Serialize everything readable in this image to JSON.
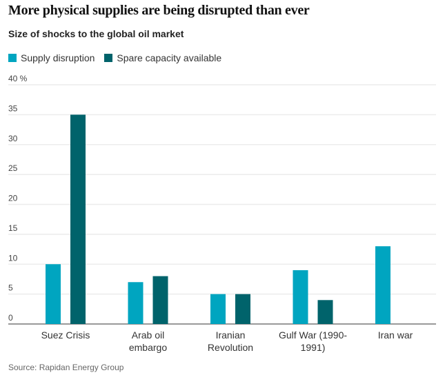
{
  "chart_data": {
    "type": "bar",
    "title": "More physical supplies are being disrupted than ever",
    "subtitle": "Size of shocks to the global oil market",
    "categories": [
      [
        "Suez Crisis"
      ],
      [
        "Arab oil",
        "embargo"
      ],
      [
        "Iranian",
        "Revolution"
      ],
      [
        "Gulf War (1990-",
        "1991)"
      ],
      [
        "Iran war"
      ]
    ],
    "series": [
      {
        "name": "Supply disruption",
        "color": "#00a5c0",
        "values": [
          10,
          7,
          5,
          9,
          13
        ]
      },
      {
        "name": "Spare capacity available",
        "color": "#00636b",
        "values": [
          35,
          8,
          5,
          4,
          null
        ]
      }
    ],
    "ylim": [
      0,
      40
    ],
    "yticks": [
      0,
      5,
      10,
      15,
      20,
      25,
      30,
      35,
      40
    ],
    "ytick_labels": [
      "0",
      "5",
      "10",
      "15",
      "20",
      "25",
      "30",
      "35",
      "40 %"
    ],
    "grid": true,
    "legend": "top-left",
    "source": "Source: Rapidan Energy Group"
  }
}
